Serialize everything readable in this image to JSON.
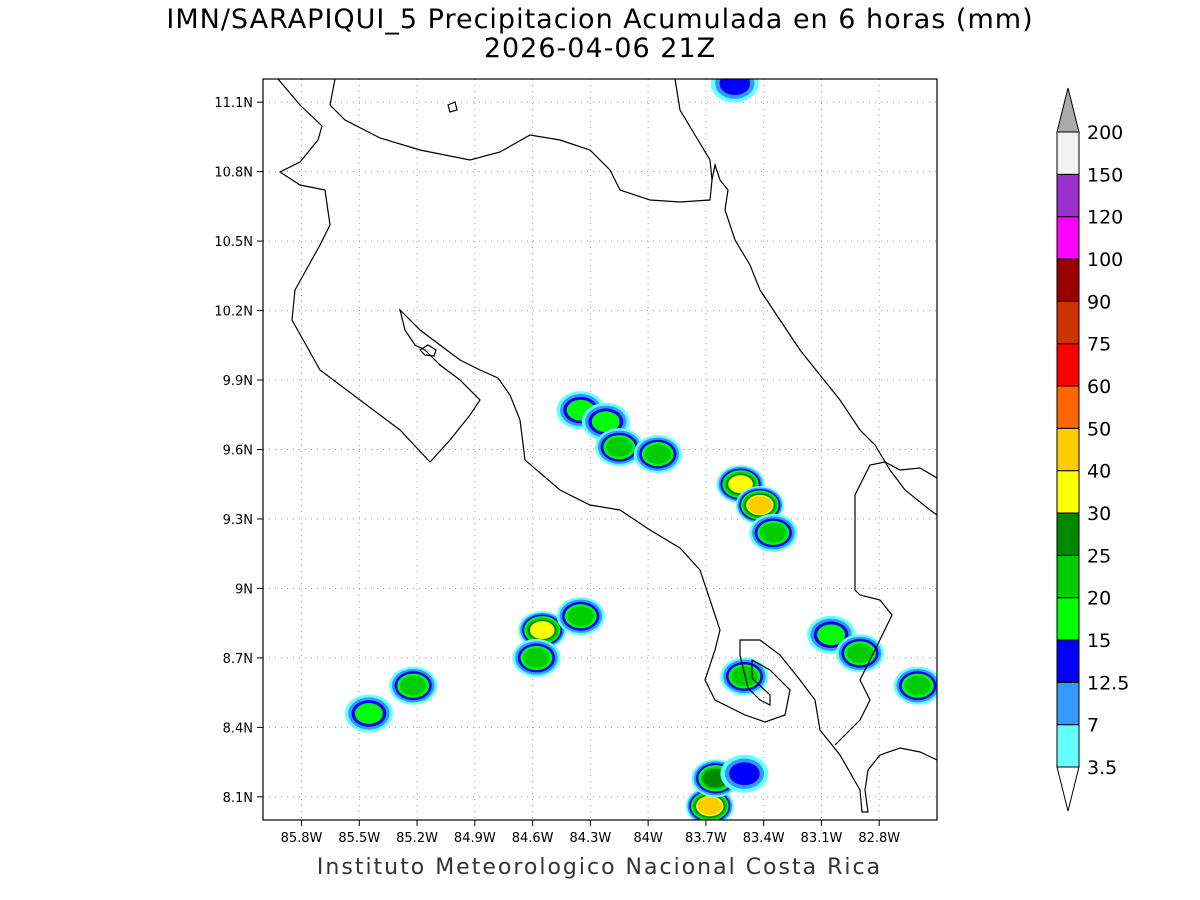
{
  "title": "IMN/SARAPIQUI_5 Precipitacion Acumulada en 6 horas (mm)",
  "subtitle": "2026-04-06 21Z",
  "credit": "Instituto Meteorologico Nacional Costa Rica",
  "map": {
    "lon_range": [
      -86.0,
      -82.5
    ],
    "lat_range": [
      8.0,
      11.2
    ],
    "lon_ticks": [
      {
        "value": -85.8,
        "label": "85.8W"
      },
      {
        "value": -85.5,
        "label": "85.5W"
      },
      {
        "value": -85.2,
        "label": "85.2W"
      },
      {
        "value": -84.9,
        "label": "84.9W"
      },
      {
        "value": -84.6,
        "label": "84.6W"
      },
      {
        "value": -84.3,
        "label": "84.3W"
      },
      {
        "value": -84.0,
        "label": "84W"
      },
      {
        "value": -83.7,
        "label": "83.7W"
      },
      {
        "value": -83.4,
        "label": "83.4W"
      },
      {
        "value": -83.1,
        "label": "83.1W"
      },
      {
        "value": -82.8,
        "label": "82.8W"
      }
    ],
    "lat_ticks": [
      {
        "value": 8.1,
        "label": "8.1N"
      },
      {
        "value": 8.4,
        "label": "8.4N"
      },
      {
        "value": 8.7,
        "label": "8.7N"
      },
      {
        "value": 9.0,
        "label": "9N"
      },
      {
        "value": 9.3,
        "label": "9.3N"
      },
      {
        "value": 9.6,
        "label": "9.6N"
      },
      {
        "value": 9.9,
        "label": "9.9N"
      },
      {
        "value": 10.2,
        "label": "10.2N"
      },
      {
        "value": 10.5,
        "label": "10.5N"
      },
      {
        "value": 10.8,
        "label": "10.8N"
      },
      {
        "value": 11.1,
        "label": "11.1N"
      }
    ],
    "grid": true
  },
  "colorbar": {
    "levels": [
      "3.5",
      "7",
      "12.5",
      "15",
      "20",
      "25",
      "30",
      "40",
      "50",
      "60",
      "75",
      "90",
      "100",
      "120",
      "150",
      "200"
    ],
    "colors": [
      "#66ffff",
      "#3399ff",
      "#0000ff",
      "#00ff00",
      "#00cc00",
      "#008800",
      "#ffff00",
      "#ffcc00",
      "#ff6600",
      "#ff0000",
      "#cc3300",
      "#990000",
      "#ff00ff",
      "#9933cc",
      "#f2f2f2"
    ],
    "top_triangle_color": "#aaaaaa",
    "bottom_triangle_color": "#ffffff"
  },
  "precip_cells": [
    {
      "lon": -83.55,
      "lat": 11.18,
      "level": 2
    },
    {
      "lon": -84.35,
      "lat": 9.77,
      "level": 3
    },
    {
      "lon": -84.22,
      "lat": 9.72,
      "level": 3
    },
    {
      "lon": -84.15,
      "lat": 9.61,
      "level": 4
    },
    {
      "lon": -83.95,
      "lat": 9.58,
      "level": 4
    },
    {
      "lon": -83.52,
      "lat": 9.45,
      "level": 6
    },
    {
      "lon": -83.42,
      "lat": 9.36,
      "level": 7
    },
    {
      "lon": -83.35,
      "lat": 9.24,
      "level": 4
    },
    {
      "lon": -84.55,
      "lat": 8.82,
      "level": 6
    },
    {
      "lon": -84.58,
      "lat": 8.7,
      "level": 4
    },
    {
      "lon": -84.35,
      "lat": 8.88,
      "level": 4
    },
    {
      "lon": -85.22,
      "lat": 8.58,
      "level": 4
    },
    {
      "lon": -85.45,
      "lat": 8.46,
      "level": 3
    },
    {
      "lon": -83.68,
      "lat": 8.06,
      "level": 7
    },
    {
      "lon": -83.65,
      "lat": 8.18,
      "level": 5
    },
    {
      "lon": -83.5,
      "lat": 8.62,
      "level": 4
    },
    {
      "lon": -83.05,
      "lat": 8.8,
      "level": 3
    },
    {
      "lon": -82.6,
      "lat": 8.58,
      "level": 4
    },
    {
      "lon": -82.9,
      "lat": 8.72,
      "level": 4
    },
    {
      "lon": -83.5,
      "lat": 8.2,
      "level": 2
    }
  ]
}
